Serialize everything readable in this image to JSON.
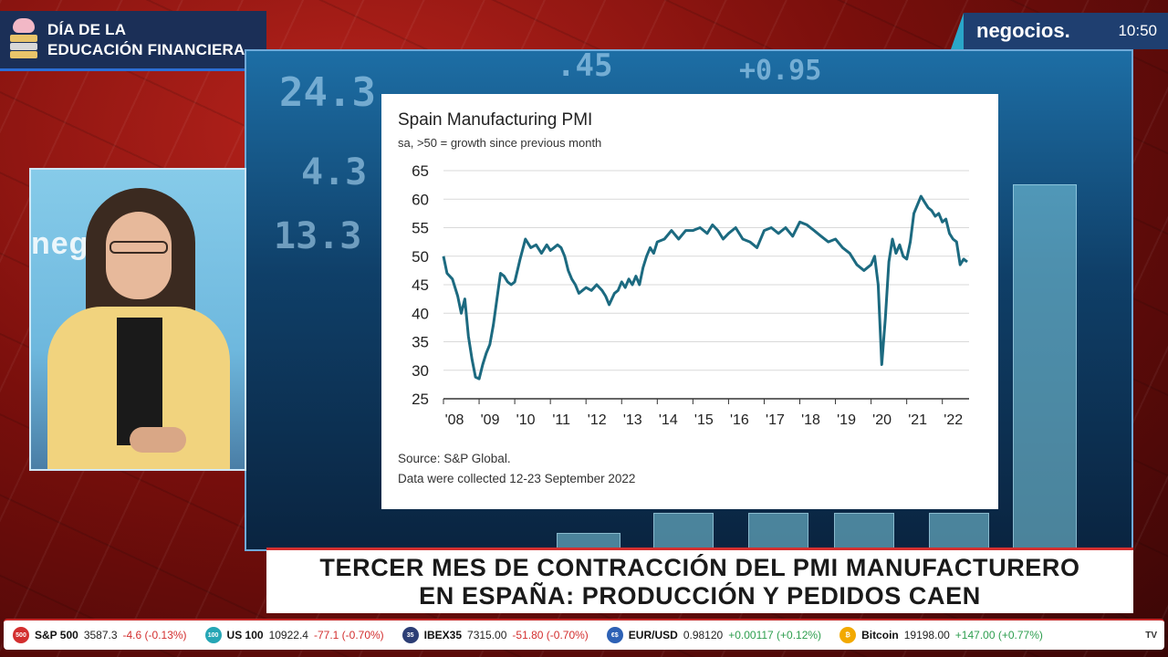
{
  "brand": {
    "line1": "DÍA DE LA",
    "line2": "EDUCACIÓN FINANCIERA",
    "icon": "piggy-bank-books-icon"
  },
  "channel": {
    "name": "negocios.",
    "time": "10:50"
  },
  "background_numbers": [
    "24.3",
    "4.3",
    "13.3",
    ".45",
    "+0.95"
  ],
  "presenter": {
    "background_text": "negocios"
  },
  "chart": {
    "title": "Spain Manufacturing PMI",
    "subtitle": "sa, >50 = growth since previous month",
    "source": "Source: S&P Global.",
    "note": "Data were collected 12-23 September 2022"
  },
  "chart_data": {
    "type": "line",
    "title": "Spain Manufacturing PMI",
    "subtitle": "sa, >50 = growth since previous month",
    "xlabel": "",
    "ylabel": "",
    "ylim": [
      25,
      65
    ],
    "yticks": [
      25,
      30,
      35,
      40,
      45,
      50,
      55,
      60,
      65
    ],
    "xlim": [
      2008.0,
      2022.75
    ],
    "xticks": [
      2008,
      2009,
      2010,
      2011,
      2012,
      2013,
      2014,
      2015,
      2016,
      2017,
      2018,
      2019,
      2020,
      2021,
      2022
    ],
    "xtick_labels": [
      "'08",
      "'09",
      "'10",
      "'11",
      "'12",
      "'13",
      "'14",
      "'15",
      "'16",
      "'17",
      "'18",
      "'19",
      "'20",
      "'21",
      "'22"
    ],
    "grid": "horizontal",
    "color": "#1c6a80",
    "x": [
      2008.0,
      2008.1,
      2008.25,
      2008.4,
      2008.5,
      2008.6,
      2008.7,
      2008.8,
      2008.9,
      2009.0,
      2009.1,
      2009.2,
      2009.3,
      2009.4,
      2009.5,
      2009.6,
      2009.7,
      2009.8,
      2009.9,
      2010.0,
      2010.15,
      2010.3,
      2010.45,
      2010.6,
      2010.75,
      2010.9,
      2011.0,
      2011.1,
      2011.2,
      2011.3,
      2011.4,
      2011.5,
      2011.6,
      2011.7,
      2011.8,
      2011.9,
      2012.0,
      2012.15,
      2012.3,
      2012.45,
      2012.55,
      2012.65,
      2012.8,
      2012.9,
      2013.0,
      2013.1,
      2013.2,
      2013.3,
      2013.4,
      2013.5,
      2013.6,
      2013.7,
      2013.8,
      2013.9,
      2014.0,
      2014.2,
      2014.4,
      2014.6,
      2014.8,
      2015.0,
      2015.2,
      2015.4,
      2015.55,
      2015.7,
      2015.85,
      2016.0,
      2016.2,
      2016.4,
      2016.6,
      2016.8,
      2017.0,
      2017.2,
      2017.4,
      2017.6,
      2017.8,
      2018.0,
      2018.2,
      2018.4,
      2018.6,
      2018.8,
      2019.0,
      2019.2,
      2019.4,
      2019.6,
      2019.8,
      2020.0,
      2020.1,
      2020.2,
      2020.3,
      2020.4,
      2020.5,
      2020.6,
      2020.7,
      2020.8,
      2020.9,
      2021.0,
      2021.1,
      2021.2,
      2021.3,
      2021.4,
      2021.5,
      2021.6,
      2021.7,
      2021.8,
      2021.9,
      2022.0,
      2022.1,
      2022.2,
      2022.3,
      2022.4,
      2022.5,
      2022.6,
      2022.7
    ],
    "y": [
      50.0,
      47.0,
      46.0,
      43.0,
      40.0,
      42.5,
      36.0,
      32.0,
      28.8,
      28.5,
      31.0,
      33.0,
      34.5,
      38.0,
      42.5,
      47.0,
      46.5,
      45.5,
      45.0,
      45.5,
      49.5,
      53.0,
      51.5,
      52.0,
      50.5,
      52.0,
      51.0,
      51.5,
      52.0,
      51.5,
      50.0,
      47.5,
      46.0,
      45.0,
      43.5,
      44.0,
      44.5,
      44.0,
      45.0,
      44.0,
      43.0,
      41.5,
      43.5,
      44.0,
      45.5,
      44.5,
      46.0,
      45.0,
      46.5,
      45.0,
      48.0,
      50.0,
      51.5,
      50.5,
      52.5,
      53.0,
      54.5,
      53.0,
      54.5,
      54.5,
      55.0,
      54.0,
      55.5,
      54.5,
      53.0,
      54.0,
      55.0,
      53.0,
      52.5,
      51.5,
      54.5,
      55.0,
      54.0,
      55.0,
      53.5,
      56.0,
      55.5,
      54.5,
      53.5,
      52.5,
      53.0,
      51.5,
      50.5,
      48.5,
      47.5,
      48.5,
      50.0,
      45.0,
      31.0,
      39.0,
      49.0,
      53.0,
      50.5,
      52.0,
      50.0,
      49.5,
      52.5,
      57.5,
      59.0,
      60.5,
      59.5,
      58.5,
      58.0,
      57.0,
      57.5,
      56.0,
      56.5,
      54.0,
      53.0,
      52.5,
      48.5,
      49.5,
      49.0
    ]
  },
  "headline": {
    "line1": "TERCER MES DE CONTRACCIÓN DEL PMI MANUFACTURERO",
    "line2": "EN ESPAÑA: PRODUCCIÓN Y PEDIDOS CAEN"
  },
  "ticker": [
    {
      "name": "S&P 500",
      "price": "3587.3",
      "change": "-4.6 (-0.13%)",
      "direction": "neg",
      "icon_color": "#d32f2f",
      "icon": "sp500-icon",
      "icon_text": "500"
    },
    {
      "name": "US 100",
      "price": "10922.4",
      "change": "-77.1 (-0.70%)",
      "direction": "neg",
      "icon_color": "#26a6b5",
      "icon": "us100-icon",
      "icon_text": "100"
    },
    {
      "name": "IBEX35",
      "price": "7315.00",
      "change": "-51.80 (-0.70%)",
      "direction": "neg",
      "icon_color": "#2c3e75",
      "icon": "ibex35-icon",
      "icon_text": "35"
    },
    {
      "name": "EUR/USD",
      "price": "0.98120",
      "change": "+0.00117 (+0.12%)",
      "direction": "pos",
      "icon_color": "#2d61b5",
      "icon": "eurusd-flag-icon",
      "icon_text": "€$"
    },
    {
      "name": "Bitcoin",
      "price": "19198.00",
      "change": "+147.00 (+0.77%)",
      "direction": "pos",
      "icon_color": "#f2a900",
      "icon": "bitcoin-icon",
      "icon_text": "₿"
    }
  ],
  "ticker_end": "TV"
}
